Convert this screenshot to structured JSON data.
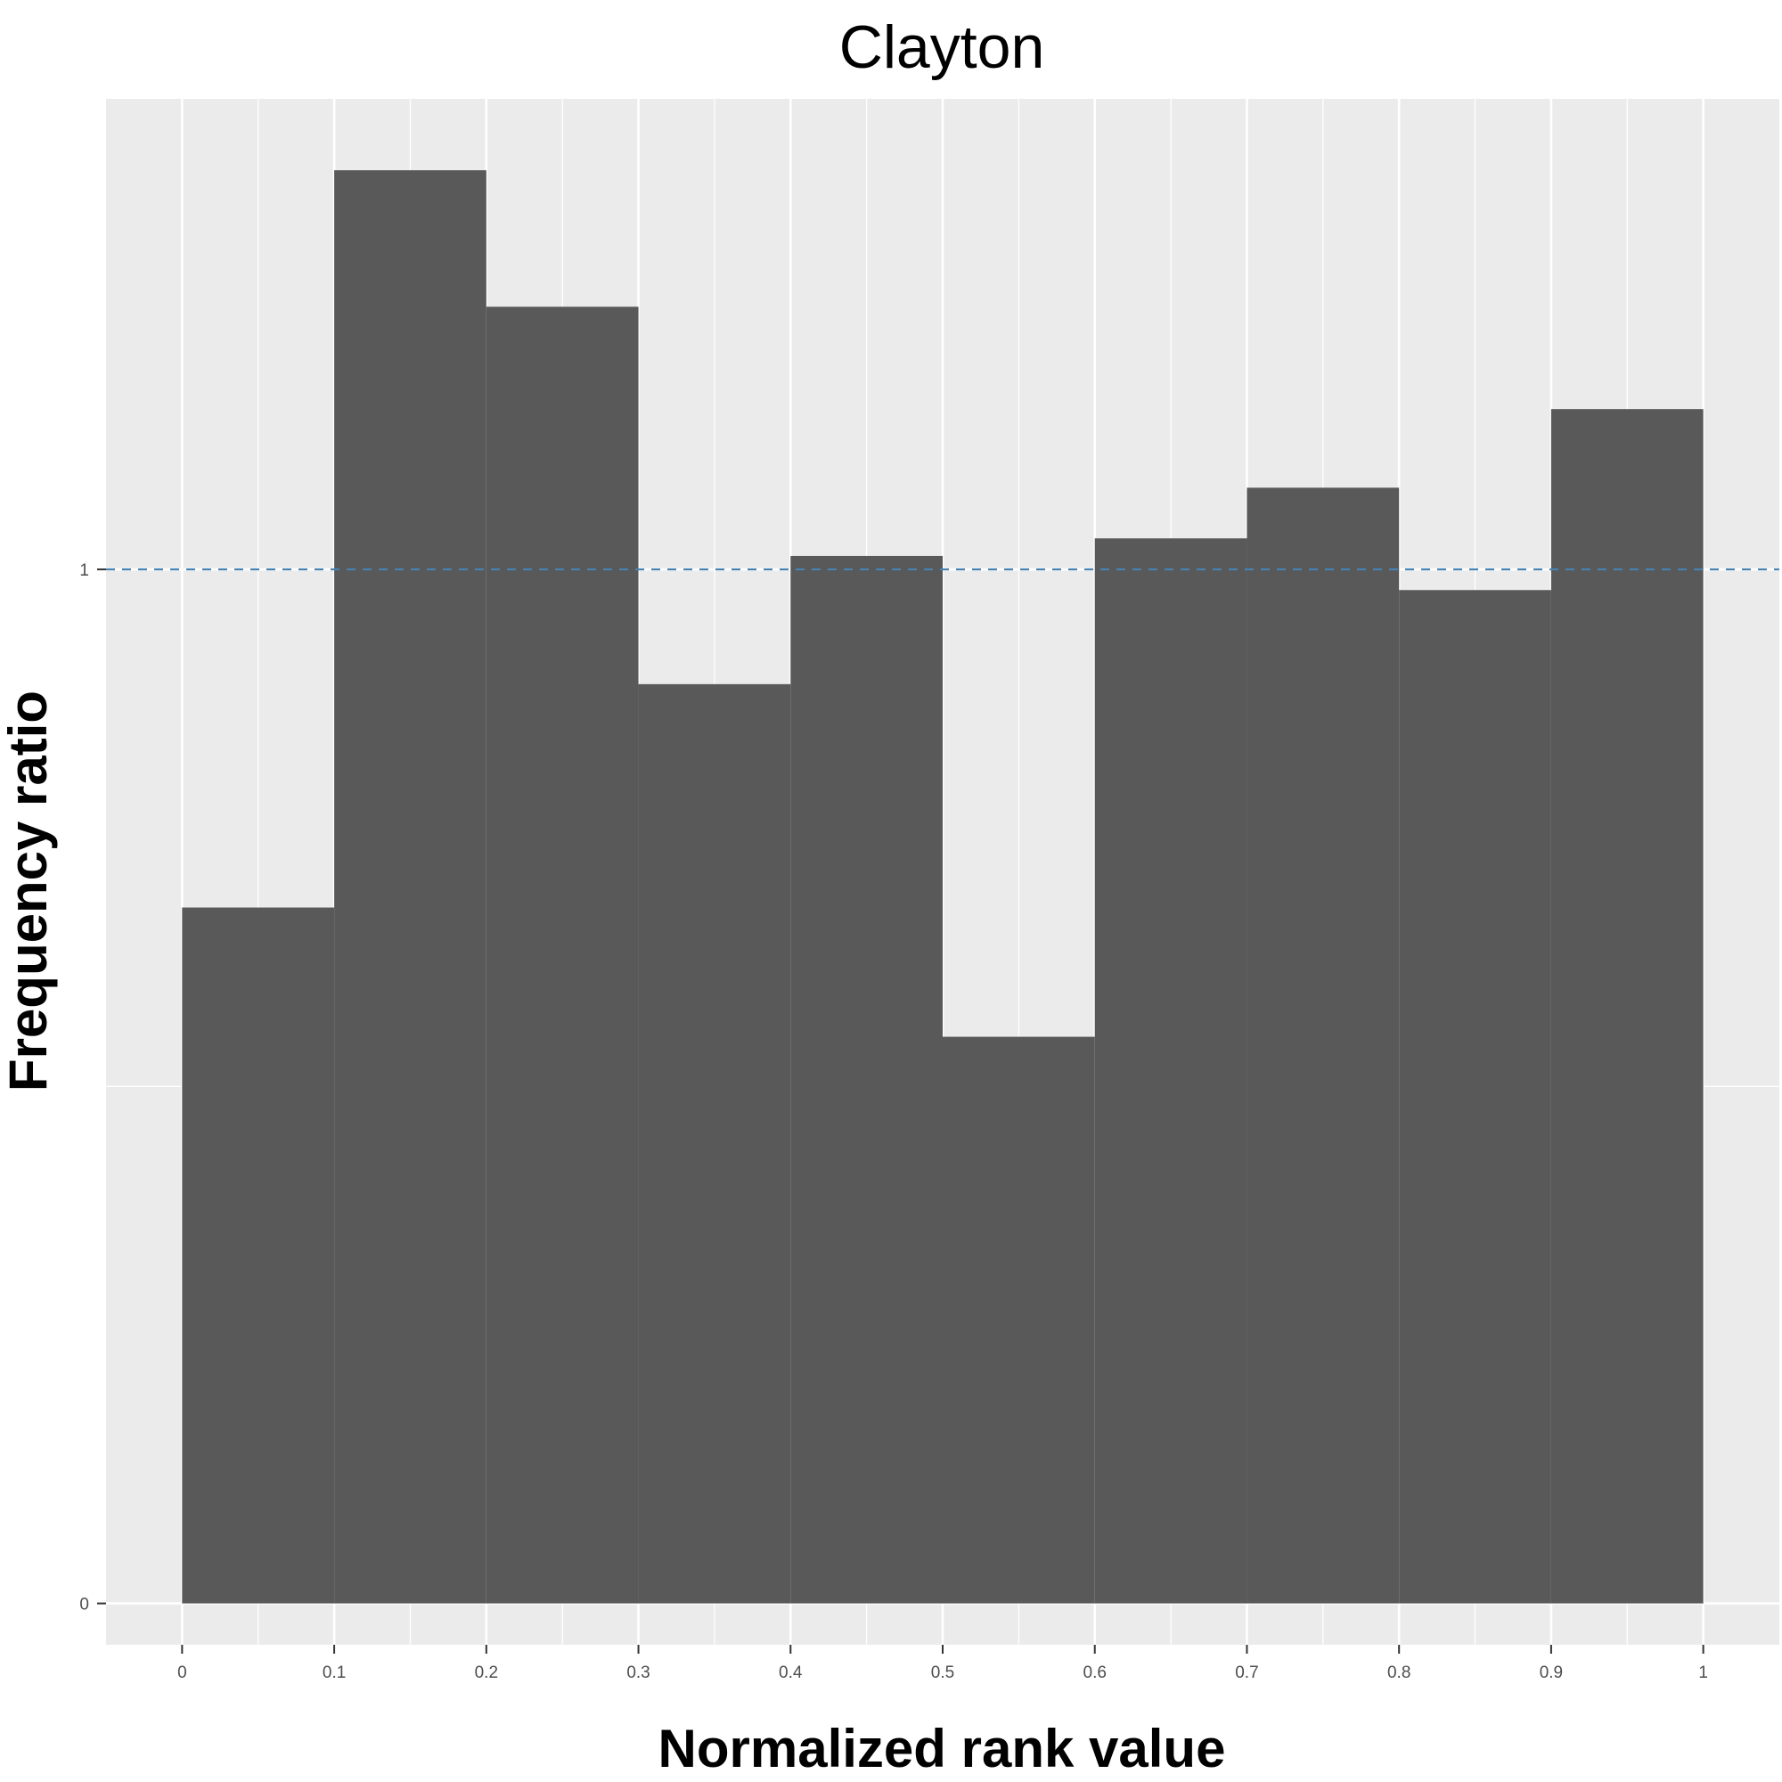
{
  "chart_data": {
    "type": "bar",
    "title": "Clayton",
    "xlabel": "Normalized rank value",
    "ylabel": "Frequency ratio",
    "bins": [
      {
        "x0": 0.0,
        "x1": 0.1,
        "value": 0.673
      },
      {
        "x0": 0.1,
        "x1": 0.2,
        "value": 1.386
      },
      {
        "x0": 0.2,
        "x1": 0.3,
        "value": 1.254
      },
      {
        "x0": 0.3,
        "x1": 0.4,
        "value": 0.889
      },
      {
        "x0": 0.4,
        "x1": 0.5,
        "value": 1.013
      },
      {
        "x0": 0.5,
        "x1": 0.6,
        "value": 0.548
      },
      {
        "x0": 0.6,
        "x1": 0.7,
        "value": 1.03
      },
      {
        "x0": 0.7,
        "x1": 0.8,
        "value": 1.079
      },
      {
        "x0": 0.8,
        "x1": 0.9,
        "value": 0.98
      },
      {
        "x0": 0.9,
        "x1": 1.0,
        "value": 1.155
      }
    ],
    "xlim": [
      -0.05,
      1.05
    ],
    "ylim": [
      -0.04,
      1.455
    ],
    "x_ticks": [
      0,
      0.1,
      0.2,
      0.3,
      0.4,
      0.5,
      0.6,
      0.7,
      0.8,
      0.9,
      1
    ],
    "x_tick_labels": [
      "0",
      "0.1",
      "0.2",
      "0.3",
      "0.4",
      "0.5",
      "0.6",
      "0.7",
      "0.8",
      "0.9",
      "1"
    ],
    "y_ticks": [
      0,
      1
    ],
    "y_tick_labels": [
      "0",
      "1"
    ],
    "y_minor_gridlines": [
      0.5
    ],
    "x_minor_gridlines": [
      0.05,
      0.15,
      0.25,
      0.35,
      0.45,
      0.55,
      0.65,
      0.75,
      0.85,
      0.95
    ],
    "reference_line": {
      "y": 1,
      "style": "dashed",
      "color": "#4682b4"
    },
    "grid": true,
    "legend": "none",
    "colors": {
      "bar_fill": "#595959",
      "panel_background": "#ebebeb",
      "gridline": "#ffffff",
      "tick_label": "#4d4d4d"
    }
  }
}
